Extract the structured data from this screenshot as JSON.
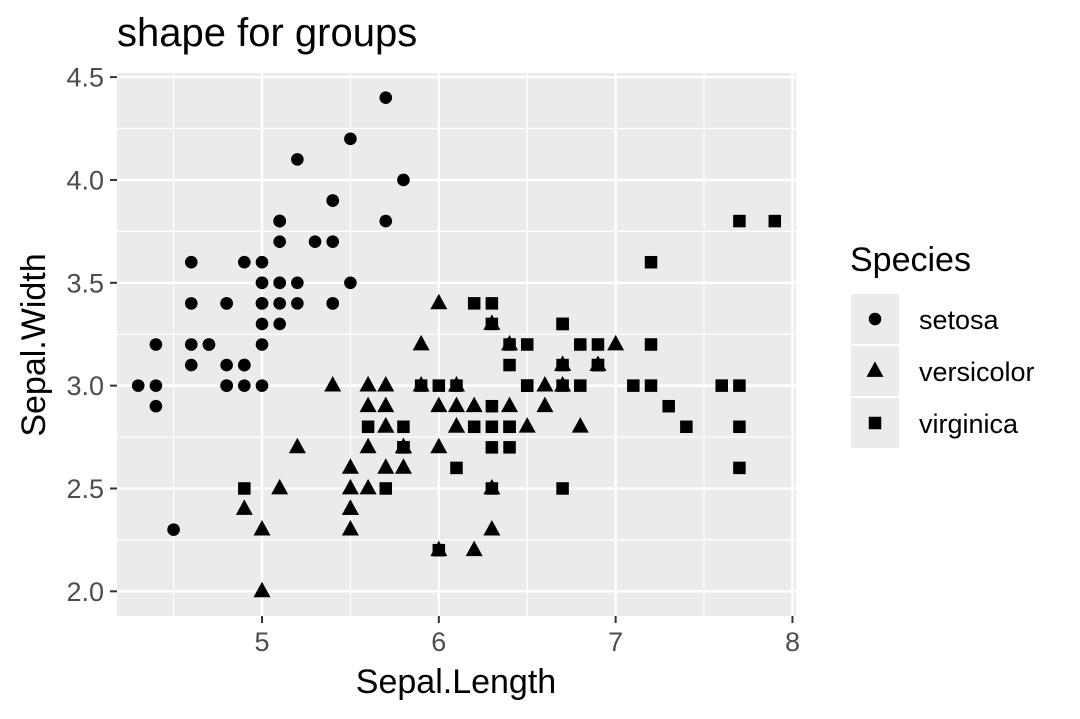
{
  "chart_data": {
    "type": "scatter",
    "title": "shape for groups",
    "xlabel": "Sepal.Length",
    "ylabel": "Sepal.Width",
    "xlim": [
      4.18,
      8.02
    ],
    "ylim": [
      1.88,
      4.52
    ],
    "x_ticks": [
      5,
      6,
      7,
      8
    ],
    "x_tick_labels": [
      "5",
      "6",
      "7",
      "8"
    ],
    "y_ticks": [
      2.0,
      2.5,
      3.0,
      3.5,
      4.0,
      4.5
    ],
    "y_tick_labels": [
      "2.0",
      "2.5",
      "3.0",
      "3.5",
      "4.0",
      "4.5"
    ],
    "grid": true,
    "panel_background": "#ebebeb",
    "grid_color": "#ffffff",
    "point_color": "#000000",
    "legend": {
      "title": "Species",
      "position": "right",
      "entries": [
        {
          "label": "setosa",
          "shape": "circle"
        },
        {
          "label": "versicolor",
          "shape": "triangle"
        },
        {
          "label": "virginica",
          "shape": "square"
        }
      ]
    },
    "series": [
      {
        "name": "setosa",
        "shape": "circle",
        "points": [
          [
            5.1,
            3.5
          ],
          [
            4.9,
            3.0
          ],
          [
            4.7,
            3.2
          ],
          [
            4.6,
            3.1
          ],
          [
            5.0,
            3.6
          ],
          [
            5.4,
            3.9
          ],
          [
            4.6,
            3.4
          ],
          [
            5.0,
            3.4
          ],
          [
            4.4,
            2.9
          ],
          [
            4.9,
            3.1
          ],
          [
            5.4,
            3.7
          ],
          [
            4.8,
            3.4
          ],
          [
            4.8,
            3.0
          ],
          [
            4.3,
            3.0
          ],
          [
            5.8,
            4.0
          ],
          [
            5.7,
            4.4
          ],
          [
            5.4,
            3.9
          ],
          [
            5.1,
            3.5
          ],
          [
            5.7,
            3.8
          ],
          [
            5.1,
            3.8
          ],
          [
            5.4,
            3.4
          ],
          [
            5.1,
            3.7
          ],
          [
            4.6,
            3.6
          ],
          [
            5.1,
            3.3
          ],
          [
            4.8,
            3.4
          ],
          [
            5.0,
            3.0
          ],
          [
            5.0,
            3.4
          ],
          [
            5.2,
            3.5
          ],
          [
            5.2,
            3.4
          ],
          [
            4.7,
            3.2
          ],
          [
            4.8,
            3.1
          ],
          [
            5.4,
            3.4
          ],
          [
            5.2,
            4.1
          ],
          [
            5.5,
            4.2
          ],
          [
            4.9,
            3.1
          ],
          [
            5.0,
            3.2
          ],
          [
            5.5,
            3.5
          ],
          [
            4.9,
            3.6
          ],
          [
            4.4,
            3.0
          ],
          [
            5.1,
            3.4
          ],
          [
            5.0,
            3.5
          ],
          [
            4.5,
            2.3
          ],
          [
            4.4,
            3.2
          ],
          [
            5.0,
            3.5
          ],
          [
            5.1,
            3.8
          ],
          [
            4.8,
            3.0
          ],
          [
            5.1,
            3.8
          ],
          [
            4.6,
            3.2
          ],
          [
            5.3,
            3.7
          ],
          [
            5.0,
            3.3
          ]
        ]
      },
      {
        "name": "versicolor",
        "shape": "triangle",
        "points": [
          [
            7.0,
            3.2
          ],
          [
            6.4,
            3.2
          ],
          [
            6.9,
            3.1
          ],
          [
            5.5,
            2.3
          ],
          [
            6.5,
            2.8
          ],
          [
            5.7,
            2.8
          ],
          [
            6.3,
            3.3
          ],
          [
            4.9,
            2.4
          ],
          [
            6.6,
            2.9
          ],
          [
            5.2,
            2.7
          ],
          [
            5.0,
            2.0
          ],
          [
            5.9,
            3.0
          ],
          [
            6.0,
            2.2
          ],
          [
            6.1,
            2.9
          ],
          [
            5.6,
            2.9
          ],
          [
            6.7,
            3.1
          ],
          [
            5.6,
            3.0
          ],
          [
            5.8,
            2.7
          ],
          [
            6.2,
            2.2
          ],
          [
            5.6,
            2.5
          ],
          [
            5.9,
            3.2
          ],
          [
            6.1,
            2.8
          ],
          [
            6.3,
            2.5
          ],
          [
            6.1,
            2.8
          ],
          [
            6.4,
            2.9
          ],
          [
            6.6,
            3.0
          ],
          [
            6.8,
            2.8
          ],
          [
            6.7,
            3.0
          ],
          [
            6.0,
            2.9
          ],
          [
            5.7,
            2.6
          ],
          [
            5.5,
            2.4
          ],
          [
            5.5,
            2.4
          ],
          [
            5.8,
            2.7
          ],
          [
            6.0,
            2.7
          ],
          [
            5.4,
            3.0
          ],
          [
            6.0,
            3.4
          ],
          [
            6.7,
            3.1
          ],
          [
            6.3,
            2.3
          ],
          [
            5.6,
            3.0
          ],
          [
            5.5,
            2.5
          ],
          [
            5.5,
            2.6
          ],
          [
            6.1,
            3.0
          ],
          [
            5.8,
            2.6
          ],
          [
            5.0,
            2.3
          ],
          [
            5.6,
            2.7
          ],
          [
            5.7,
            3.0
          ],
          [
            5.7,
            2.9
          ],
          [
            6.2,
            2.9
          ],
          [
            5.1,
            2.5
          ],
          [
            5.7,
            2.8
          ]
        ]
      },
      {
        "name": "virginica",
        "shape": "square",
        "points": [
          [
            6.3,
            3.3
          ],
          [
            5.8,
            2.7
          ],
          [
            7.1,
            3.0
          ],
          [
            6.3,
            2.9
          ],
          [
            6.5,
            3.0
          ],
          [
            7.6,
            3.0
          ],
          [
            4.9,
            2.5
          ],
          [
            7.3,
            2.9
          ],
          [
            6.7,
            2.5
          ],
          [
            7.2,
            3.6
          ],
          [
            6.5,
            3.2
          ],
          [
            6.4,
            2.7
          ],
          [
            6.8,
            3.0
          ],
          [
            5.7,
            2.5
          ],
          [
            5.8,
            2.8
          ],
          [
            6.4,
            3.2
          ],
          [
            6.5,
            3.0
          ],
          [
            7.7,
            3.8
          ],
          [
            7.7,
            2.6
          ],
          [
            6.0,
            2.2
          ],
          [
            6.9,
            3.2
          ],
          [
            5.6,
            2.8
          ],
          [
            7.7,
            2.8
          ],
          [
            6.3,
            2.7
          ],
          [
            6.7,
            3.3
          ],
          [
            7.2,
            3.2
          ],
          [
            6.2,
            2.8
          ],
          [
            6.1,
            3.0
          ],
          [
            6.4,
            2.8
          ],
          [
            7.2,
            3.0
          ],
          [
            7.4,
            2.8
          ],
          [
            7.9,
            3.8
          ],
          [
            6.4,
            2.8
          ],
          [
            6.3,
            2.8
          ],
          [
            6.1,
            2.6
          ],
          [
            7.7,
            3.0
          ],
          [
            6.3,
            3.4
          ],
          [
            6.4,
            3.1
          ],
          [
            6.0,
            3.0
          ],
          [
            6.9,
            3.1
          ],
          [
            6.7,
            3.1
          ],
          [
            6.9,
            3.1
          ],
          [
            5.8,
            2.7
          ],
          [
            6.8,
            3.2
          ],
          [
            6.7,
            3.3
          ],
          [
            6.7,
            3.0
          ],
          [
            6.3,
            2.5
          ],
          [
            6.5,
            3.0
          ],
          [
            6.2,
            3.4
          ],
          [
            5.9,
            3.0
          ]
        ]
      }
    ]
  }
}
